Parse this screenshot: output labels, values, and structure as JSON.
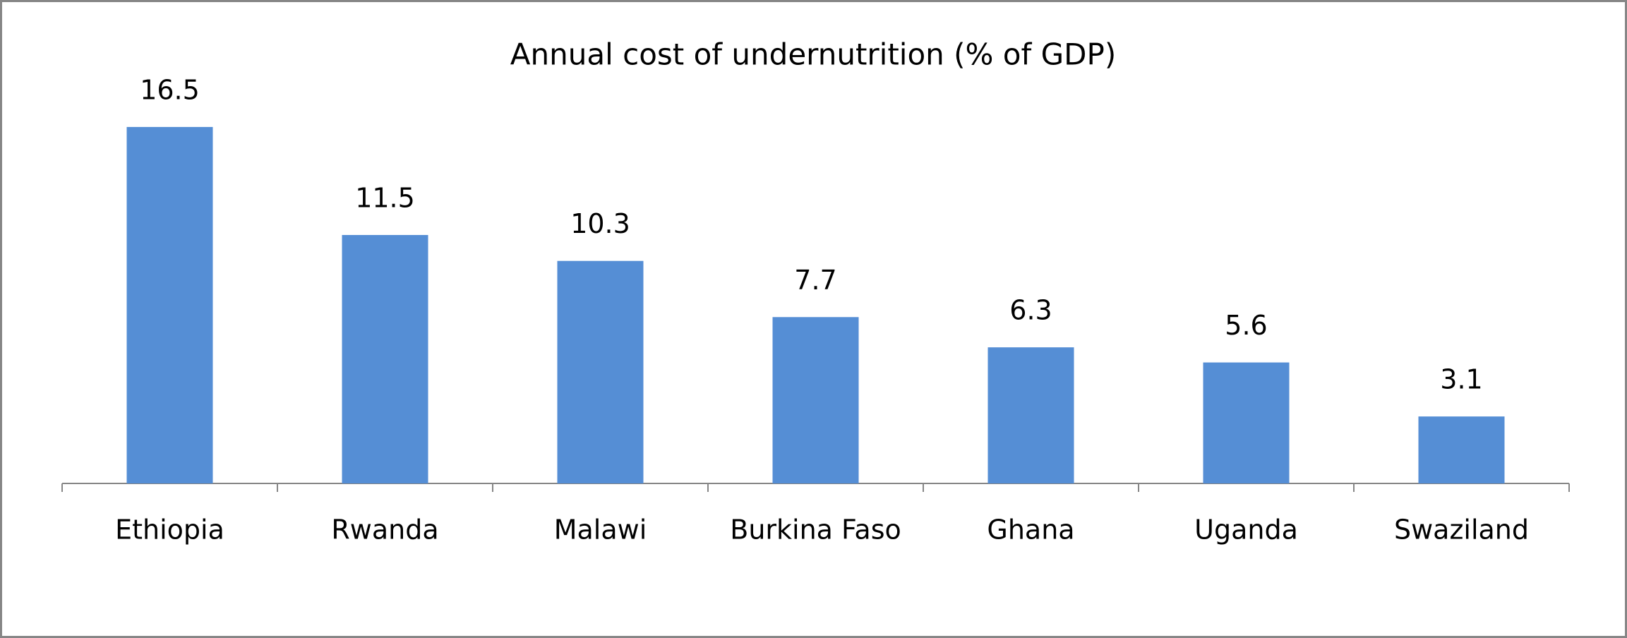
{
  "chart_data": {
    "type": "bar",
    "title": "Annual cost of undernutrition (% of GDP)",
    "categories": [
      "Ethiopia",
      "Rwanda",
      "Malawi",
      "Burkina Faso",
      "Ghana",
      "Uganda",
      "Swaziland"
    ],
    "values": [
      16.5,
      11.5,
      10.3,
      7.7,
      6.3,
      5.6,
      3.1
    ],
    "color": "#558ed5",
    "ylim": [
      0,
      18
    ]
  }
}
